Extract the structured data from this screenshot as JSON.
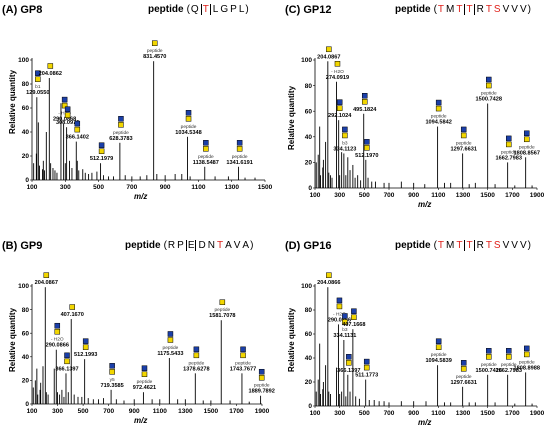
{
  "chart_data": [
    {
      "type": "bar",
      "title": "(A) GP8",
      "peptide_prefix": "peptide",
      "sequence": [
        "Q",
        "T",
        "L",
        "G",
        "P",
        "L"
      ],
      "site_index": 1,
      "site_sub": "S",
      "xlabel": "m/z",
      "ylabel": "Relative quantity",
      "xlim": [
        100,
        1500
      ],
      "ylim": [
        0,
        100
      ],
      "xticks": [
        100,
        300,
        500,
        700,
        900,
        1100,
        1300,
        1500
      ],
      "yticks": [
        0,
        20,
        40,
        60,
        80,
        100
      ],
      "peaks": [
        [
          110,
          14
        ],
        [
          126,
          22
        ],
        [
          129,
          69
        ],
        [
          138,
          48
        ],
        [
          145,
          12
        ],
        [
          163,
          9
        ],
        [
          168,
          16
        ],
        [
          175,
          8
        ],
        [
          186,
          40
        ],
        [
          204,
          85
        ],
        [
          212,
          14
        ],
        [
          226,
          10
        ],
        [
          238,
          8
        ],
        [
          250,
          6
        ],
        [
          274,
          64
        ],
        [
          290,
          47
        ],
        [
          300,
          14
        ],
        [
          308,
          44
        ],
        [
          325,
          16
        ],
        [
          340,
          10
        ],
        [
          366,
          32
        ],
        [
          372,
          16
        ],
        [
          381,
          8
        ],
        [
          405,
          9
        ],
        [
          420,
          6
        ],
        [
          440,
          5
        ],
        [
          460,
          6
        ],
        [
          490,
          7
        ],
        [
          512,
          14
        ],
        [
          530,
          4
        ],
        [
          560,
          3
        ],
        [
          590,
          3
        ],
        [
          628,
          31
        ],
        [
          660,
          4
        ],
        [
          700,
          3
        ],
        [
          750,
          3
        ],
        [
          790,
          4
        ],
        [
          831,
          99
        ],
        [
          850,
          5
        ],
        [
          900,
          4
        ],
        [
          960,
          5
        ],
        [
          1000,
          5
        ],
        [
          1034,
          36
        ],
        [
          1050,
          3
        ],
        [
          1138,
          11
        ],
        [
          1200,
          3
        ],
        [
          1280,
          3
        ],
        [
          1341,
          11
        ],
        [
          1380,
          2
        ],
        [
          1440,
          2
        ]
      ],
      "labels": [
        {
          "x": 129.055,
          "y": 69,
          "lines": [
            "b1",
            "129.0550"
          ]
        },
        {
          "x": 204.0862,
          "y": 85,
          "lines": [
            "204.0862"
          ]
        },
        {
          "x": 290.0868,
          "y": 47,
          "lines": [
            "- H2O",
            "290.0868"
          ]
        },
        {
          "x": 308.0976,
          "y": 44,
          "lines": [
            "308.0976"
          ]
        },
        {
          "x": 366.1402,
          "y": 32,
          "lines": [
            "366.1402"
          ]
        },
        {
          "x": 512.1979,
          "y": 14,
          "lines": [
            "512.1979"
          ]
        },
        {
          "x": 628.3783,
          "y": 31,
          "lines": [
            "peptide",
            "628.3783"
          ]
        },
        {
          "x": 831.457,
          "y": 99,
          "lines": [
            "peptide",
            "831.4570"
          ]
        },
        {
          "x": 1034.5348,
          "y": 36,
          "lines": [
            "peptide",
            "1034.5348"
          ]
        },
        {
          "x": 1138.5487,
          "y": 11,
          "lines": [
            "peptide",
            "1138.5487"
          ]
        },
        {
          "x": 1341.6191,
          "y": 11,
          "lines": [
            "peptide",
            "1341.6191"
          ]
        }
      ]
    },
    {
      "type": "bar",
      "title": "(C) GP12",
      "peptide_prefix": "peptide",
      "sequence": [
        "T",
        "M",
        "T",
        "T",
        "R",
        "T",
        "S",
        "V",
        "V",
        "V"
      ],
      "red_indices": [
        0,
        2,
        3,
        5,
        6
      ],
      "site_index": 3,
      "site_sub": "S",
      "xlabel": "m/z",
      "ylabel": "Relative quantity",
      "xlim": [
        100,
        1900
      ],
      "ylim": [
        0,
        100
      ],
      "xticks": [
        100,
        300,
        500,
        700,
        900,
        1100,
        1300,
        1500,
        1700,
        1900
      ],
      "yticks": [
        0,
        20,
        40,
        60,
        80,
        100
      ],
      "peaks": [
        [
          110,
          20
        ],
        [
          126,
          26
        ],
        [
          138,
          48
        ],
        [
          145,
          10
        ],
        [
          163,
          16
        ],
        [
          168,
          22
        ],
        [
          186,
          36
        ],
        [
          204,
          99
        ],
        [
          212,
          12
        ],
        [
          226,
          10
        ],
        [
          238,
          8
        ],
        [
          274,
          83
        ],
        [
          292,
          53
        ],
        [
          300,
          10
        ],
        [
          316,
          28
        ],
        [
          334,
          27
        ],
        [
          350,
          10
        ],
        [
          366,
          24
        ],
        [
          384,
          14
        ],
        [
          407,
          18
        ],
        [
          425,
          8
        ],
        [
          446,
          10
        ],
        [
          470,
          6
        ],
        [
          495,
          58
        ],
        [
          512,
          22
        ],
        [
          530,
          8
        ],
        [
          560,
          5
        ],
        [
          590,
          5
        ],
        [
          660,
          4
        ],
        [
          700,
          4
        ],
        [
          800,
          5
        ],
        [
          900,
          4
        ],
        [
          990,
          3
        ],
        [
          1094,
          48
        ],
        [
          1150,
          4
        ],
        [
          1200,
          4
        ],
        [
          1297,
          27
        ],
        [
          1350,
          3
        ],
        [
          1400,
          4
        ],
        [
          1500,
          66
        ],
        [
          1560,
          3
        ],
        [
          1662,
          20
        ],
        [
          1720,
          2
        ],
        [
          1808,
          24
        ],
        [
          1860,
          2
        ]
      ],
      "labels": [
        {
          "x": 204.0867,
          "y": 99,
          "lines": [
            "204.0867"
          ]
        },
        {
          "x": 274.0919,
          "y": 83,
          "lines": [
            "- H2O",
            "274.0919"
          ]
        },
        {
          "x": 292.1024,
          "y": 53,
          "lines": [
            "292.1024"
          ]
        },
        {
          "x": 334.1123,
          "y": 27,
          "lines": [
            "b3",
            "334.1123"
          ]
        },
        {
          "x": 495.1824,
          "y": 58,
          "lines": [
            "495.1824"
          ]
        },
        {
          "x": 512.197,
          "y": 22,
          "lines": [
            "512.1970"
          ]
        },
        {
          "x": 1094.5842,
          "y": 48,
          "lines": [
            "peptide",
            "1094.5842"
          ]
        },
        {
          "x": 1297.6631,
          "y": 27,
          "lines": [
            "peptide",
            "1297.6631"
          ]
        },
        {
          "x": 1500.7428,
          "y": 66,
          "lines": [
            "peptide",
            "1500.7428"
          ]
        },
        {
          "x": 1662.7983,
          "y": 20,
          "lines": [
            "peptide",
            "1662.7983"
          ]
        },
        {
          "x": 1808.8567,
          "y": 24,
          "lines": [
            "peptide",
            "1808.8567"
          ]
        }
      ]
    },
    {
      "type": "bar",
      "title": "(B) GP9",
      "peptide_prefix": "peptide",
      "sequence": [
        "R",
        "P",
        "E",
        "D",
        "N",
        "T",
        "A",
        "V",
        "A"
      ],
      "red_indices": [
        5
      ],
      "site_index": 2,
      "site_sub": "Y",
      "xlabel": "m/z",
      "ylabel": "Relative quantity",
      "xlim": [
        100,
        1900
      ],
      "ylim": [
        0,
        100
      ],
      "xticks": [
        100,
        300,
        500,
        700,
        900,
        1100,
        1300,
        1500,
        1700,
        1900
      ],
      "yticks": [
        0,
        20,
        40,
        60,
        80,
        100
      ],
      "peaks": [
        [
          110,
          14
        ],
        [
          126,
          20
        ],
        [
          138,
          30
        ],
        [
          145,
          8
        ],
        [
          163,
          12
        ],
        [
          168,
          18
        ],
        [
          186,
          32
        ],
        [
          204,
          99
        ],
        [
          212,
          10
        ],
        [
          226,
          8
        ],
        [
          274,
          30
        ],
        [
          290,
          46
        ],
        [
          300,
          10
        ],
        [
          316,
          8
        ],
        [
          334,
          12
        ],
        [
          350,
          6
        ],
        [
          366,
          26
        ],
        [
          384,
          10
        ],
        [
          407,
          72
        ],
        [
          430,
          8
        ],
        [
          460,
          6
        ],
        [
          490,
          6
        ],
        [
          512,
          38
        ],
        [
          540,
          5
        ],
        [
          580,
          4
        ],
        [
          620,
          4
        ],
        [
          660,
          5
        ],
        [
          719,
          12
        ],
        [
          760,
          4
        ],
        [
          820,
          3
        ],
        [
          900,
          4
        ],
        [
          972,
          10
        ],
        [
          1040,
          4
        ],
        [
          1100,
          4
        ],
        [
          1175,
          39
        ],
        [
          1240,
          4
        ],
        [
          1300,
          4
        ],
        [
          1378,
          26
        ],
        [
          1440,
          3
        ],
        [
          1500,
          3
        ],
        [
          1581,
          71
        ],
        [
          1650,
          3
        ],
        [
          1743,
          26
        ],
        [
          1800,
          2
        ],
        [
          1889,
          7
        ]
      ],
      "labels": [
        {
          "x": 204.0867,
          "y": 99,
          "lines": [
            "204.0867"
          ]
        },
        {
          "x": 290.0866,
          "y": 46,
          "lines": [
            "- H2O",
            "290.0866"
          ]
        },
        {
          "x": 366.1397,
          "y": 26,
          "lines": [
            "366.1397"
          ]
        },
        {
          "x": 407.167,
          "y": 72,
          "lines": [
            "407.1670"
          ]
        },
        {
          "x": 512.1993,
          "y": 38,
          "lines": [
            "512.1993"
          ]
        },
        {
          "x": 719.3585,
          "y": 12,
          "lines": [
            "y5",
            "719.3585"
          ]
        },
        {
          "x": 972.4621,
          "y": 10,
          "lines": [
            "peptide",
            "972.4621"
          ]
        },
        {
          "x": 1175.5433,
          "y": 39,
          "lines": [
            "peptide",
            "1175.5433"
          ]
        },
        {
          "x": 1378.6278,
          "y": 26,
          "lines": [
            "peptide",
            "1378.6278"
          ]
        },
        {
          "x": 1581.7078,
          "y": 71,
          "lines": [
            "peptide",
            "1581.7078"
          ]
        },
        {
          "x": 1743.7677,
          "y": 26,
          "lines": [
            "peptide",
            "1743.7677"
          ]
        },
        {
          "x": 1889.7892,
          "y": 7,
          "lines": [
            "peptide",
            "1889.7892"
          ]
        }
      ]
    },
    {
      "type": "bar",
      "title": "(D) GP16",
      "peptide_prefix": "peptide",
      "sequence": [
        "T",
        "M",
        "T",
        "T",
        "R",
        "T",
        "S",
        "V",
        "V",
        "V"
      ],
      "red_indices": [
        0,
        2,
        3,
        5,
        6
      ],
      "site_index": 3,
      "site_sub": "S",
      "xlabel": "m/z",
      "ylabel": "Relative quantity",
      "xlim": [
        100,
        1900
      ],
      "ylim": [
        0,
        100
      ],
      "xticks": [
        100,
        300,
        500,
        700,
        900,
        1100,
        1300,
        1500,
        1700,
        1900
      ],
      "yticks": [
        0,
        20,
        40,
        60,
        80,
        100
      ],
      "peaks": [
        [
          110,
          12
        ],
        [
          126,
          22
        ],
        [
          138,
          52
        ],
        [
          145,
          10
        ],
        [
          163,
          14
        ],
        [
          168,
          20
        ],
        [
          186,
          34
        ],
        [
          204,
          99
        ],
        [
          212,
          12
        ],
        [
          226,
          10
        ],
        [
          274,
          32
        ],
        [
          290,
          68
        ],
        [
          300,
          10
        ],
        [
          316,
          12
        ],
        [
          334,
          55
        ],
        [
          350,
          8
        ],
        [
          366,
          26
        ],
        [
          384,
          12
        ],
        [
          407,
          64
        ],
        [
          430,
          8
        ],
        [
          460,
          6
        ],
        [
          511,
          22
        ],
        [
          540,
          5
        ],
        [
          580,
          5
        ],
        [
          620,
          4
        ],
        [
          660,
          4
        ],
        [
          700,
          3
        ],
        [
          800,
          4
        ],
        [
          900,
          4
        ],
        [
          1000,
          4
        ],
        [
          1094,
          34
        ],
        [
          1150,
          3
        ],
        [
          1200,
          3
        ],
        [
          1297,
          16
        ],
        [
          1350,
          3
        ],
        [
          1400,
          3
        ],
        [
          1500,
          26
        ],
        [
          1560,
          3
        ],
        [
          1662,
          26
        ],
        [
          1720,
          2
        ],
        [
          1808,
          28
        ],
        [
          1860,
          2
        ]
      ],
      "labels": [
        {
          "x": 204.0866,
          "y": 99,
          "lines": [
            "204.0866"
          ]
        },
        {
          "x": 290.0866,
          "y": 68,
          "lines": [
            "- H2O",
            "290.0866"
          ]
        },
        {
          "x": 334.1131,
          "y": 55,
          "lines": [
            "b3",
            "334.1131"
          ]
        },
        {
          "x": 366.1397,
          "y": 26,
          "lines": [
            "366.1397"
          ]
        },
        {
          "x": 407.1668,
          "y": 64,
          "lines": [
            "407.1668"
          ]
        },
        {
          "x": 511.1773,
          "y": 22,
          "lines": [
            "511.1773"
          ]
        },
        {
          "x": 1094.5839,
          "y": 34,
          "lines": [
            "peptide",
            "1094.5839"
          ]
        },
        {
          "x": 1297.6631,
          "y": 16,
          "lines": [
            "peptide",
            "1297.6631"
          ]
        },
        {
          "x": 1500.7428,
          "y": 26,
          "lines": [
            "peptide",
            "1500.7428"
          ]
        },
        {
          "x": 1662.7983,
          "y": 26,
          "lines": [
            "peptide",
            "1662.7983"
          ]
        },
        {
          "x": 1808.8988,
          "y": 28,
          "lines": [
            "peptide",
            "1808.8988"
          ]
        }
      ]
    }
  ],
  "colors": {
    "bar": "#000000",
    "red": "#e0201a",
    "hexnac_square": "#1b3fa8",
    "hex_square": "#f2d600",
    "fuc_triangle": "#e0201a",
    "neuac_diamond": "#a8347e"
  }
}
